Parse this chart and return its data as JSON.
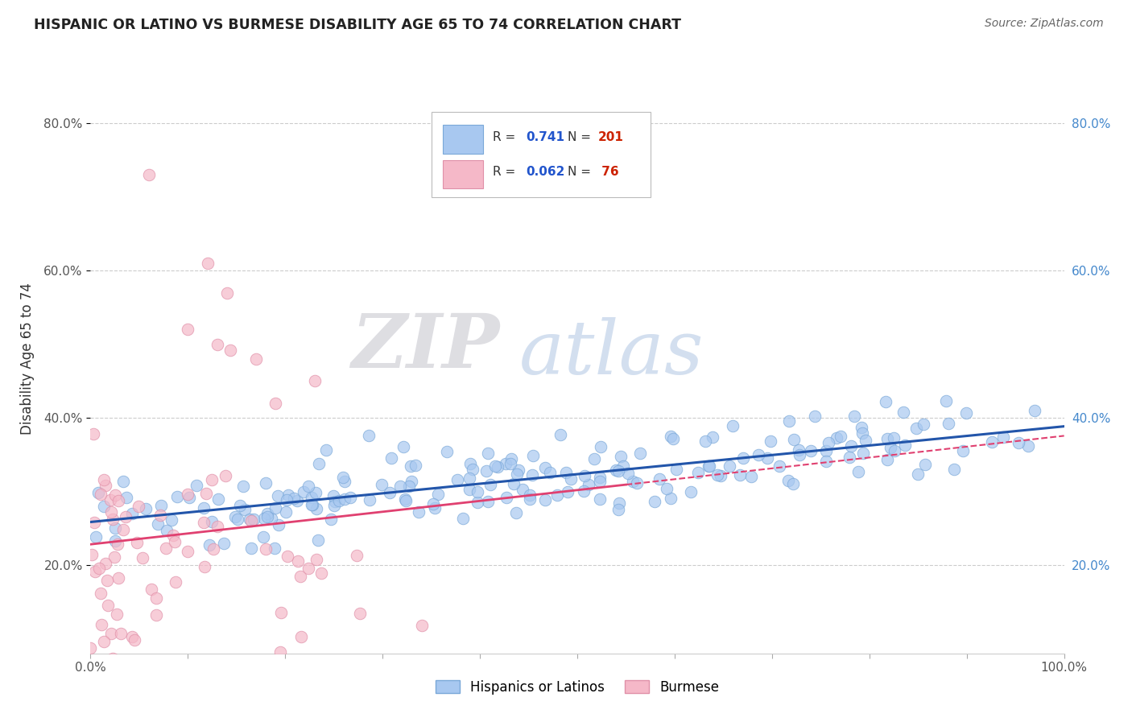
{
  "title": "HISPANIC OR LATINO VS BURMESE DISABILITY AGE 65 TO 74 CORRELATION CHART",
  "source_text": "Source: ZipAtlas.com",
  "ylabel": "Disability Age 65 to 74",
  "watermark_zip": "ZIP",
  "watermark_atlas": "atlas",
  "xmin": 0.0,
  "xmax": 1.0,
  "ymin": 0.08,
  "ymax": 0.88,
  "yticks": [
    0.2,
    0.4,
    0.6,
    0.8
  ],
  "ytick_labels": [
    "20.0%",
    "40.0%",
    "60.0%",
    "80.0%"
  ],
  "series1_color": "#a8c8f0",
  "series1_edge": "#7aa8d8",
  "series1_line_color": "#2255aa",
  "series1_label": "Hispanics or Latinos",
  "series1_R": 0.741,
  "series1_N": 201,
  "series2_color": "#f5b8c8",
  "series2_edge": "#e090a8",
  "series2_line_color": "#e04070",
  "series2_label": "Burmese",
  "series2_R": 0.062,
  "series2_N": 76,
  "legend_R_color": "#2255cc",
  "legend_N_color": "#cc2200",
  "background_color": "#ffffff",
  "grid_color": "#cccccc",
  "title_color": "#222222"
}
